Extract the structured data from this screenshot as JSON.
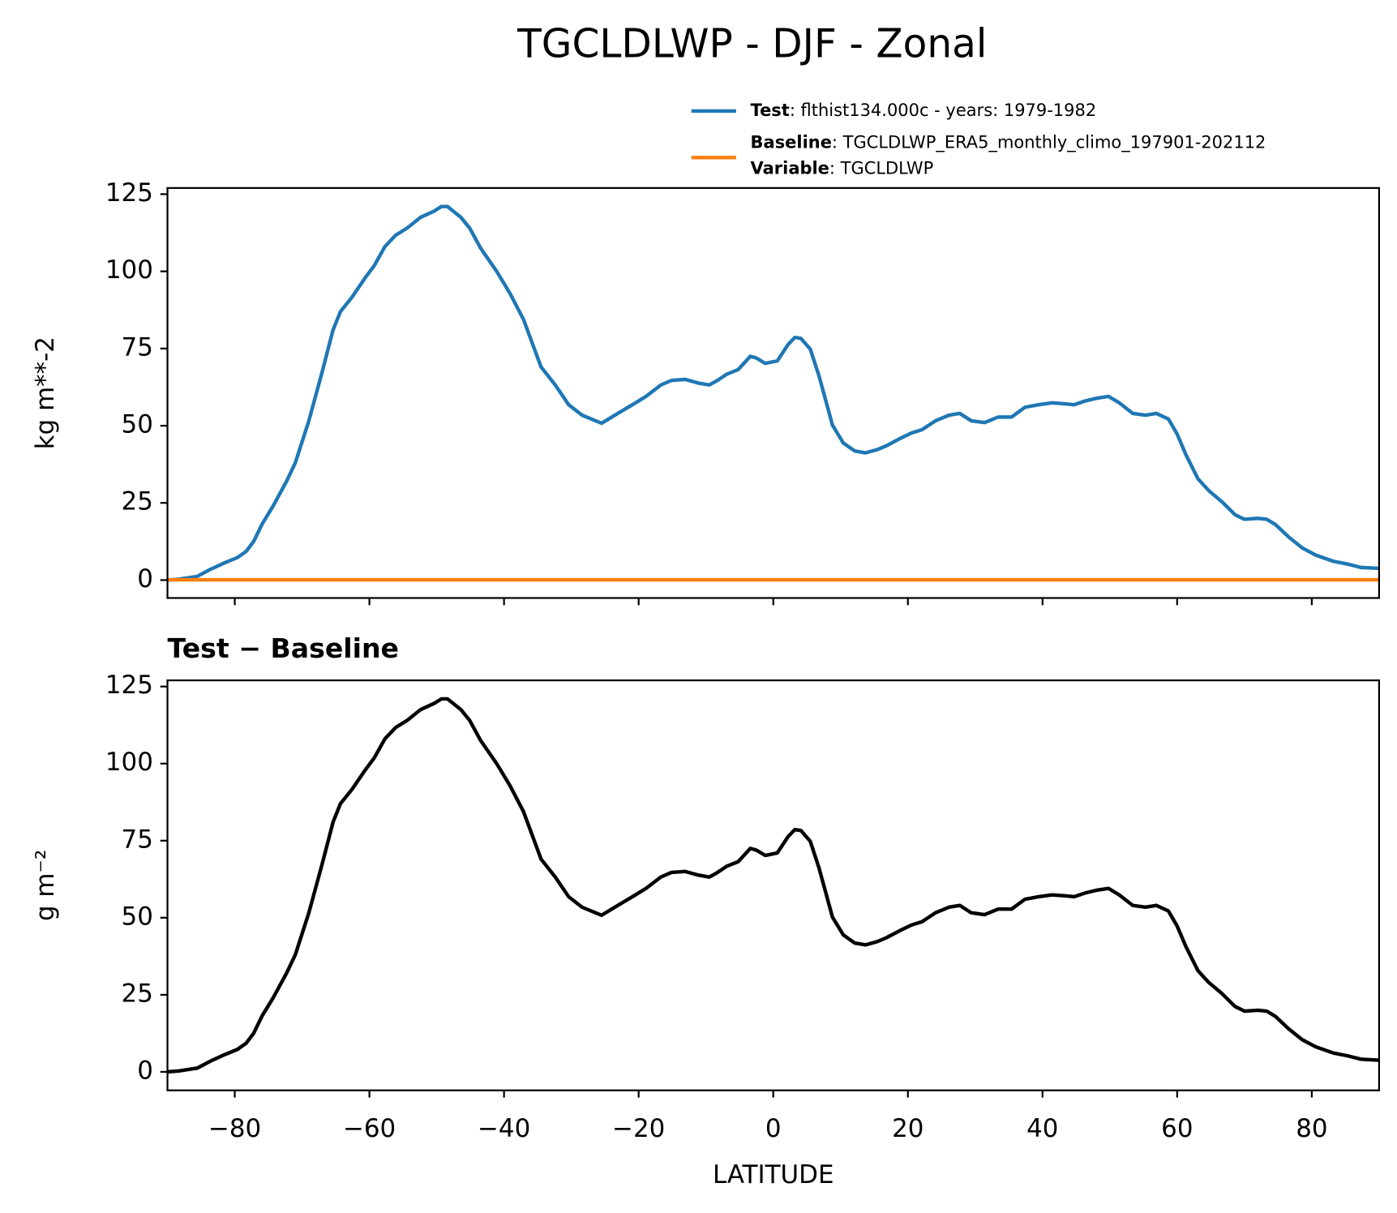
{
  "figure_title": "TGCLDLWP - DJF - Zonal",
  "chart_data": [
    {
      "type": "line",
      "ylabel": "kg m**-2",
      "xlim": [
        -90,
        90
      ],
      "ylim": [
        -5.8,
        127
      ],
      "xticks": [
        -80,
        -60,
        -40,
        -20,
        0,
        20,
        40,
        60,
        80
      ],
      "tick_labels": false,
      "yticks": [
        0,
        25,
        50,
        75,
        100,
        125
      ],
      "x": [
        -90,
        -88.3,
        -85.6,
        -83.6,
        -81.6,
        -79.6,
        -78.3,
        -77.2,
        -75.9,
        -74.3,
        -72.3,
        -71,
        -69,
        -67,
        -65.4,
        -64.3,
        -62.6,
        -60.6,
        -59.3,
        -57.7,
        -56.1,
        -54.4,
        -52.4,
        -50.4,
        -49.3,
        -48.4,
        -46.4,
        -45.1,
        -43.5,
        -41.1,
        -39.1,
        -37.1,
        -34.5,
        -32.4,
        -30.4,
        -28.4,
        -25.5,
        -23.1,
        -20.7,
        -18.9,
        -16.7,
        -15.1,
        -13.1,
        -11.1,
        -9.5,
        -8.5,
        -6.9,
        -5.2,
        -3.4,
        -2.5,
        -1.2,
        0.6,
        2.2,
        3.2,
        4.1,
        5.5,
        6.8,
        8.8,
        10.4,
        12.1,
        13.7,
        15.5,
        16.8,
        18.8,
        20.5,
        22.1,
        24.1,
        26.1,
        27.7,
        29.4,
        31.4,
        33.4,
        35.4,
        37.4,
        39.4,
        41.4,
        43.4,
        44.7,
        46.3,
        48,
        49.8,
        51.4,
        53.4,
        55.3,
        56.9,
        58.7,
        60,
        61.3,
        63.1,
        64.7,
        66.6,
        68.6,
        70,
        72,
        73.3,
        74.6,
        76.6,
        78.6,
        80.6,
        83.2,
        85.3,
        87.3,
        90
      ],
      "series": [
        {
          "name": "Test",
          "label_text": ": flthist134.000c - years: 1979-1982",
          "color": "#1f77b4",
          "values": [
            0,
            0.3,
            1.2,
            3.5,
            5.5,
            7.3,
            9.3,
            12.5,
            18.3,
            24,
            32,
            38,
            51.6,
            67.6,
            81,
            87,
            91.6,
            98,
            101.8,
            108,
            111.7,
            114,
            117.5,
            119.5,
            121,
            121,
            117.5,
            114,
            107.6,
            100,
            92.8,
            84.4,
            69,
            63.2,
            56.8,
            53.4,
            50.8,
            54,
            57.1,
            59.5,
            63.2,
            64.7,
            65,
            63.8,
            63.2,
            64.4,
            66.7,
            68.2,
            72.5,
            71.9,
            70.2,
            71,
            76.3,
            78.6,
            78.3,
            74.8,
            66.1,
            50.2,
            44.4,
            41.8,
            41.2,
            42.3,
            43.5,
            45.8,
            47.6,
            48.7,
            51.6,
            53.4,
            54,
            51.6,
            51,
            52.8,
            52.8,
            56,
            56.8,
            57.4,
            57.1,
            56.8,
            58,
            58.9,
            59.5,
            57.4,
            54,
            53.4,
            54,
            52.2,
            47.3,
            40.6,
            32.8,
            29,
            25.5,
            21.2,
            19.7,
            20,
            19.7,
            18,
            13.9,
            10.4,
            8.1,
            6.1,
            5.2,
            4.1,
            3.8
          ]
        },
        {
          "name": "Baseline",
          "label_text": ": TGCLDLWP_ERA5_monthly_climo_197901-202112",
          "color": "#ff7f0e",
          "values": [
            0.1,
            0.1,
            0.1,
            0.1,
            0.1,
            0.1,
            0.1,
            0.1,
            0.1,
            0.1,
            0.1,
            0.1,
            0.1,
            0.1,
            0.1,
            0.1,
            0.1,
            0.1,
            0.1,
            0.1,
            0.1,
            0.1,
            0.1,
            0.1,
            0.1,
            0.1,
            0.1,
            0.1,
            0.1,
            0.1,
            0.1,
            0.1,
            0.1,
            0.1,
            0.1,
            0.1,
            0.1,
            0.1,
            0.1,
            0.1,
            0.1,
            0.1,
            0.1,
            0.1,
            0.1,
            0.1,
            0.1,
            0.1,
            0.1,
            0.1,
            0.1,
            0.1,
            0.1,
            0.1,
            0.1,
            0.1,
            0.1,
            0.1,
            0.1,
            0.1,
            0.1,
            0.1,
            0.1,
            0.1,
            0.1,
            0.1,
            0.1,
            0.1,
            0.1,
            0.1,
            0.1,
            0.1,
            0.1,
            0.1,
            0.1,
            0.1,
            0.1,
            0.1,
            0.1,
            0.1,
            0.1,
            0.1,
            0.1,
            0.1,
            0.1,
            0.1,
            0.1,
            0.1,
            0.1,
            0.1,
            0.1,
            0.1,
            0.1,
            0.1,
            0.1,
            0.1,
            0.1,
            0.1,
            0.1,
            0.1,
            0.1,
            0.1,
            0.1
          ]
        }
      ],
      "legend_extra": {
        "name": "Variable",
        "label_text": ": TGCLDLWP"
      }
    },
    {
      "type": "line",
      "title": "Test − Baseline",
      "ylabel": "g m⁻²",
      "xlabel": "LATITUDE",
      "xlim": [
        -90,
        90
      ],
      "ylim": [
        -6,
        127
      ],
      "xticks": [
        -80,
        -60,
        -40,
        -20,
        0,
        20,
        40,
        60,
        80
      ],
      "tick_labels": true,
      "yticks": [
        0,
        25,
        50,
        75,
        100,
        125
      ],
      "x": [
        -90,
        -88.3,
        -85.6,
        -83.6,
        -81.6,
        -79.6,
        -78.3,
        -77.2,
        -75.9,
        -74.3,
        -72.3,
        -71,
        -69,
        -67,
        -65.4,
        -64.3,
        -62.6,
        -60.6,
        -59.3,
        -57.7,
        -56.1,
        -54.4,
        -52.4,
        -50.4,
        -49.3,
        -48.4,
        -46.4,
        -45.1,
        -43.5,
        -41.1,
        -39.1,
        -37.1,
        -34.5,
        -32.4,
        -30.4,
        -28.4,
        -25.5,
        -23.1,
        -20.7,
        -18.9,
        -16.7,
        -15.1,
        -13.1,
        -11.1,
        -9.5,
        -8.5,
        -6.9,
        -5.2,
        -3.4,
        -2.5,
        -1.2,
        0.6,
        2.2,
        3.2,
        4.1,
        5.5,
        6.8,
        8.8,
        10.4,
        12.1,
        13.7,
        15.5,
        16.8,
        18.8,
        20.5,
        22.1,
        24.1,
        26.1,
        27.7,
        29.4,
        31.4,
        33.4,
        35.4,
        37.4,
        39.4,
        41.4,
        43.4,
        44.7,
        46.3,
        48,
        49.8,
        51.4,
        53.4,
        55.3,
        56.9,
        58.7,
        60,
        61.3,
        63.1,
        64.7,
        66.6,
        68.6,
        70,
        72,
        73.3,
        74.6,
        76.6,
        78.6,
        80.6,
        83.2,
        85.3,
        87.3,
        90
      ],
      "series": [
        {
          "color": "#000000",
          "values": [
            0,
            0.3,
            1.2,
            3.5,
            5.5,
            7.3,
            9.3,
            12.5,
            18.3,
            24,
            32,
            38,
            51.6,
            67.6,
            81,
            87,
            91.6,
            98,
            101.8,
            108,
            111.7,
            114,
            117.5,
            119.5,
            121,
            121,
            117.5,
            114,
            107.6,
            100,
            92.8,
            84.4,
            69,
            63.2,
            56.8,
            53.4,
            50.8,
            54,
            57.1,
            59.5,
            63.2,
            64.7,
            65,
            63.8,
            63.2,
            64.4,
            66.7,
            68.2,
            72.5,
            71.9,
            70.2,
            71,
            76.3,
            78.6,
            78.3,
            74.8,
            66.1,
            50.2,
            44.4,
            41.8,
            41.2,
            42.3,
            43.5,
            45.8,
            47.6,
            48.7,
            51.6,
            53.4,
            54,
            51.6,
            51,
            52.8,
            52.8,
            56,
            56.8,
            57.4,
            57.1,
            56.8,
            58,
            58.9,
            59.5,
            57.4,
            54,
            53.4,
            54,
            52.2,
            47.3,
            40.6,
            32.8,
            29,
            25.5,
            21.2,
            19.7,
            20,
            19.7,
            18,
            13.9,
            10.4,
            8.1,
            6.1,
            5.2,
            4.1,
            3.8
          ]
        }
      ]
    }
  ]
}
